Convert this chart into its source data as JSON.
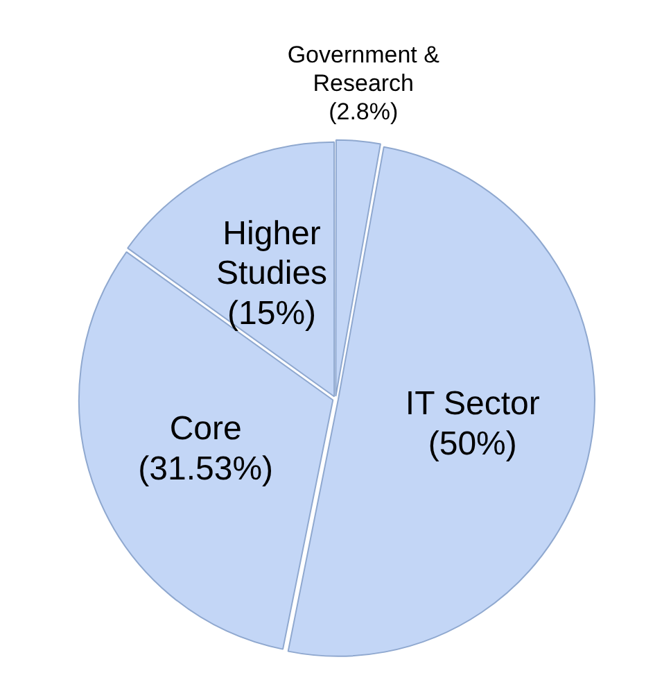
{
  "chart_data": {
    "type": "pie",
    "categories": [
      "Government & Research",
      "IT Sector",
      "Core",
      "Higher Studies"
    ],
    "values": [
      2.8,
      50,
      31.53,
      15
    ],
    "value_labels": [
      "(2.8%)",
      "(50%)",
      "(31.53%)",
      "(15%)"
    ],
    "colors": [
      "#c3d6f6",
      "#c3d6f6",
      "#c3d6f6",
      "#c3d6f6"
    ],
    "legend": false
  }
}
